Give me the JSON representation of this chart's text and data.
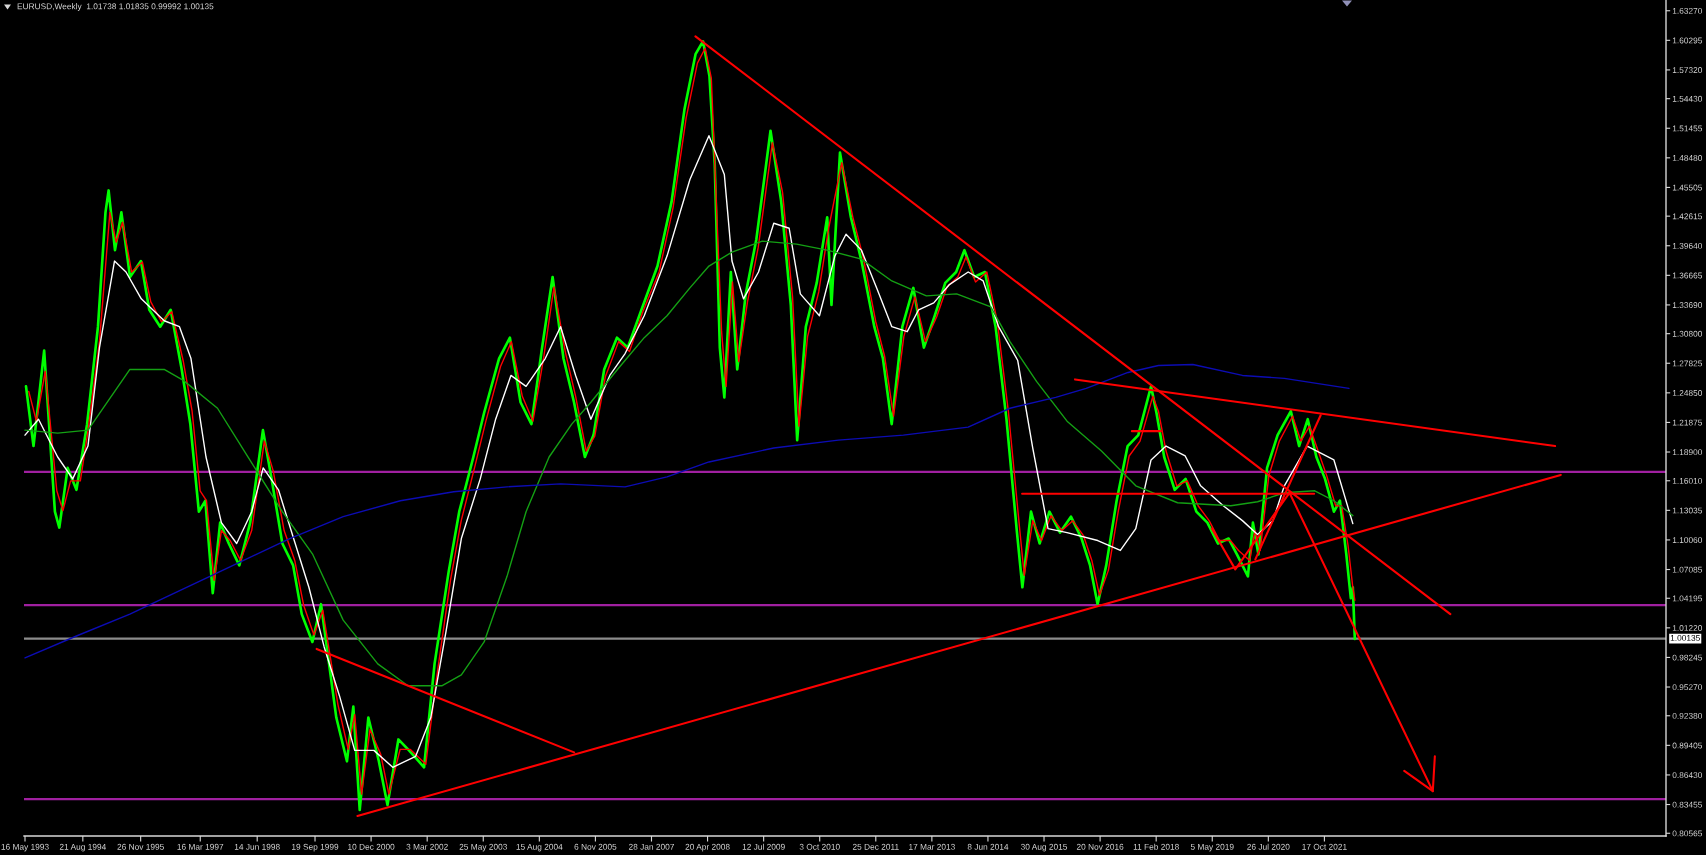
{
  "chart_data": {
    "type": "line",
    "title": "EURUSD,Weekly  1.01738 1.01835 0.99992 1.00135",
    "xlim": [
      "1993-05-08",
      "2029-04-07"
    ],
    "xticks": [
      {
        "value": "1993-05-16",
        "label": "16 May 1993"
      },
      {
        "value": "1994-08-21",
        "label": "21 Aug 1994"
      },
      {
        "value": "1995-11-26",
        "label": "26 Nov 1995"
      },
      {
        "value": "1997-03-16",
        "label": "16 Mar 1997"
      },
      {
        "value": "1998-06-14",
        "label": "14 Jun 1998"
      },
      {
        "value": "1999-09-19",
        "label": "19 Sep 1999"
      },
      {
        "value": "2000-12-10",
        "label": "10 Dec 2000"
      },
      {
        "value": "2002-03-03",
        "label": "3 Mar 2002"
      },
      {
        "value": "2003-05-25",
        "label": "25 May 2003"
      },
      {
        "value": "2004-08-15",
        "label": "15 Aug 2004"
      },
      {
        "value": "2005-11-06",
        "label": "6 Nov 2005"
      },
      {
        "value": "2007-01-28",
        "label": "28 Jan 2007"
      },
      {
        "value": "2008-04-20",
        "label": "20 Apr 2008"
      },
      {
        "value": "2009-07-12",
        "label": "12 Jul 2009"
      },
      {
        "value": "2010-10-03",
        "label": "3 Oct 2010"
      },
      {
        "value": "2011-12-25",
        "label": "25 Dec 2011"
      },
      {
        "value": "2013-03-17",
        "label": "17 Mar 2013"
      },
      {
        "value": "2014-06-08",
        "label": "8 Jun 2014"
      },
      {
        "value": "2015-08-30",
        "label": "30 Aug 2015"
      },
      {
        "value": "2016-11-20",
        "label": "20 Nov 2016"
      },
      {
        "value": "2018-02-11",
        "label": "11 Feb 2018"
      },
      {
        "value": "2019-05-05",
        "label": "5 May 2019"
      },
      {
        "value": "2020-07-26",
        "label": "26 Jul 2020"
      },
      {
        "value": "2021-10-17",
        "label": "17 Oct 2021"
      }
    ],
    "ylim": [
      0.8029,
      1.6435
    ],
    "yticks": [
      {
        "value": 1.6327,
        "label": "1.63270"
      },
      {
        "value": 1.60295,
        "label": "1.60295"
      },
      {
        "value": 1.5732,
        "label": "1.57320"
      },
      {
        "value": 1.5443,
        "label": "1.54430"
      },
      {
        "value": 1.51455,
        "label": "1.51455"
      },
      {
        "value": 1.4848,
        "label": "1.48480"
      },
      {
        "value": 1.45505,
        "label": "1.45505"
      },
      {
        "value": 1.42615,
        "label": "1.42615"
      },
      {
        "value": 1.3964,
        "label": "1.39640"
      },
      {
        "value": 1.36665,
        "label": "1.36665"
      },
      {
        "value": 1.3369,
        "label": "1.33690"
      },
      {
        "value": 1.308,
        "label": "1.30800"
      },
      {
        "value": 1.27825,
        "label": "1.27825"
      },
      {
        "value": 1.2485,
        "label": "1.24850"
      },
      {
        "value": 1.21875,
        "label": "1.21875"
      },
      {
        "value": 1.189,
        "label": "1.18900"
      },
      {
        "value": 1.1601,
        "label": "1.16010"
      },
      {
        "value": 1.13035,
        "label": "1.13035"
      },
      {
        "value": 1.1006,
        "label": "1.10060"
      },
      {
        "value": 1.07085,
        "label": "1.07085"
      },
      {
        "value": 1.04195,
        "label": "1.04195"
      },
      {
        "value": 1.0122,
        "label": "1.01220"
      },
      {
        "value": 0.98245,
        "label": "0.98245"
      },
      {
        "value": 0.9527,
        "label": "0.95270"
      },
      {
        "value": 0.9238,
        "label": "0.92380"
      },
      {
        "value": 0.89405,
        "label": "0.89405"
      },
      {
        "value": 0.8643,
        "label": "0.86430"
      },
      {
        "value": 0.83455,
        "label": "0.83455"
      },
      {
        "value": 0.80565,
        "label": "0.80565"
      }
    ],
    "grid": false,
    "marker": "none",
    "line_style": "solid",
    "series": [
      {
        "color": "#00ff00",
        "x": [
          "1993-05-24",
          "1993-07-23",
          "1993-10-16",
          "1994-01-10",
          "1994-02-14",
          "1994-04-22",
          "1994-07-01",
          "1994-09-24",
          "1994-12-20",
          "1995-02-18",
          "1995-03-15",
          "1995-05-05",
          "1995-06-25",
          "1995-09-02",
          "1995-11-28",
          "1996-02-03",
          "1996-04-30",
          "1996-07-23",
          "1996-10-19",
          "1996-12-27",
          "1997-03-05",
          "1997-04-26",
          "1997-06-24",
          "1997-08-22",
          "1997-10-30",
          "1998-01-22",
          "1998-04-19",
          "1998-07-30",
          "1998-10-07",
          "1999-01-01",
          "1999-03-28",
          "1999-06-05",
          "1999-08-29",
          "1999-11-06",
          "2000-03-07",
          "2000-05-31",
          "2000-07-21",
          "2000-09-10",
          "2000-11-18",
          "2001-02-10",
          "2001-04-20",
          "2001-07-16",
          "2001-10-09",
          "2002-02-06",
          "2002-05-01",
          "2002-08-22",
          "2002-11-14",
          "2003-03-07",
          "2003-05-31",
          "2003-09-28",
          "2003-12-24",
          "2004-03-18",
          "2004-06-13",
          "2004-09-06",
          "2004-11-29",
          "2005-02-24",
          "2005-05-19",
          "2005-08-14",
          "2005-10-22",
          "2006-01-15",
          "2006-04-27",
          "2006-07-22",
          "2006-11-09",
          "2007-03-17",
          "2007-07-08",
          "2007-10-19",
          "2008-01-15",
          "2008-03-15",
          "2008-05-05",
          "2008-06-16",
          "2008-07-27",
          "2008-09-01",
          "2008-10-23",
          "2008-12-13",
          "2009-02-19",
          "2009-05-15",
          "2009-09-05",
          "2009-11-29",
          "2010-02-14",
          "2010-04-06",
          "2010-06-14",
          "2010-09-09",
          "2010-12-02",
          "2011-01-05",
          "2011-03-14",
          "2011-06-09",
          "2011-09-02",
          "2011-12-13",
          "2012-02-20",
          "2012-04-30",
          "2012-07-24",
          "2012-10-20",
          "2013-01-12",
          "2013-04-09",
          "2013-07-02",
          "2013-09-27",
          "2013-12-02",
          "2014-02-18",
          "2014-05-15",
          "2014-08-08",
          "2014-11-03",
          "2015-01-26",
          "2015-03-10",
          "2015-05-18",
          "2015-07-26",
          "2015-10-12",
          "2016-01-05",
          "2016-04-01",
          "2016-06-25",
          "2016-09-01",
          "2016-10-31",
          "2017-01-08",
          "2017-04-01",
          "2017-06-28",
          "2017-09-21",
          "2018-01-01",
          "2018-02-14",
          "2018-04-16",
          "2018-07-09",
          "2018-10-04",
          "2018-12-29",
          "2019-03-27",
          "2019-06-19",
          "2019-09-13",
          "2019-11-18",
          "2020-02-14",
          "2020-03-25",
          "2020-05-08",
          "2020-07-16",
          "2020-10-08",
          "2021-01-22",
          "2021-03-29",
          "2021-06-06",
          "2021-08-14",
          "2021-10-22",
          "2022-01-01",
          "2022-02-18",
          "2022-04-10",
          "2022-05-16",
          "2022-06-01",
          "2022-06-17"
        ],
        "values": [
          1.255,
          1.195,
          1.291,
          1.129,
          1.113,
          1.173,
          1.151,
          1.217,
          1.315,
          1.43,
          1.452,
          1.392,
          1.43,
          1.365,
          1.381,
          1.332,
          1.315,
          1.332,
          1.272,
          1.217,
          1.129,
          1.14,
          1.047,
          1.118,
          1.097,
          1.075,
          1.118,
          1.211,
          1.162,
          1.097,
          1.075,
          1.026,
          0.998,
          1.036,
          0.922,
          0.878,
          0.933,
          0.829,
          0.922,
          0.878,
          0.834,
          0.9,
          0.889,
          0.872,
          0.976,
          1.069,
          1.129,
          1.184,
          1.228,
          1.283,
          1.304,
          1.239,
          1.217,
          1.294,
          1.365,
          1.283,
          1.239,
          1.184,
          1.206,
          1.272,
          1.304,
          1.294,
          1.332,
          1.376,
          1.441,
          1.534,
          1.589,
          1.602,
          1.567,
          1.479,
          1.294,
          1.244,
          1.37,
          1.272,
          1.348,
          1.403,
          1.512,
          1.441,
          1.337,
          1.201,
          1.315,
          1.359,
          1.425,
          1.337,
          1.49,
          1.425,
          1.381,
          1.315,
          1.283,
          1.217,
          1.315,
          1.354,
          1.294,
          1.326,
          1.359,
          1.37,
          1.392,
          1.365,
          1.37,
          1.315,
          1.222,
          1.108,
          1.053,
          1.129,
          1.097,
          1.129,
          1.108,
          1.124,
          1.102,
          1.075,
          1.036,
          1.075,
          1.14,
          1.195,
          1.206,
          1.255,
          1.228,
          1.184,
          1.151,
          1.162,
          1.129,
          1.118,
          1.097,
          1.102,
          1.086,
          1.064,
          1.118,
          1.086,
          1.173,
          1.206,
          1.23,
          1.195,
          1.222,
          1.184,
          1.162,
          1.129,
          1.14,
          1.086,
          1.042,
          1.053,
          1.001
        ]
      },
      {
        "color": "#ff0000",
        "x": [
          "1993-06-15",
          "1993-08-15",
          "1993-10-25",
          "1994-01-25",
          "1994-03-15",
          "1994-05-15",
          "1994-08-01",
          "1994-10-01",
          "1995-01-01",
          "1995-03-25",
          "1995-05-15",
          "1995-07-05",
          "1995-09-15",
          "1995-12-10",
          "1996-02-15",
          "1996-05-10",
          "1996-08-01",
          "1996-11-01",
          "1997-01-10",
          "1997-03-15",
          "1997-05-05",
          "1997-07-05",
          "1997-09-01",
          "1997-11-10",
          "1998-02-01",
          "1998-05-01",
          "1998-08-10",
          "1998-10-20",
          "1999-01-15",
          "1999-04-10",
          "1999-06-20",
          "1999-09-10",
          "1999-11-20",
          "2000-03-20",
          "2000-06-10",
          "2000-08-01",
          "2000-09-25",
          "2000-12-01",
          "2001-02-25",
          "2001-05-01",
          "2001-07-30",
          "2001-10-20",
          "2002-02-20",
          "2002-05-15",
          "2002-09-05",
          "2002-11-30",
          "2003-03-20",
          "2003-06-15",
          "2003-10-10",
          "2004-01-05",
          "2004-04-01",
          "2004-06-25",
          "2004-09-20",
          "2004-12-10",
          "2005-03-10",
          "2005-06-01",
          "2005-08-25",
          "2005-11-01",
          "2006-01-25",
          "2006-05-10",
          "2006-08-05",
          "2006-11-20",
          "2007-03-30",
          "2007-07-20",
          "2007-11-01",
          "2008-01-30",
          "2008-04-01",
          "2008-05-20",
          "2008-08-10",
          "2008-09-15",
          "2008-11-05",
          "2008-12-25",
          "2009-03-05",
          "2009-05-30",
          "2009-09-20",
          "2009-12-10",
          "2010-02-28",
          "2010-04-20",
          "2010-06-28",
          "2010-09-25",
          "2010-12-15",
          "2011-03-28",
          "2011-06-25",
          "2011-09-15",
          "2011-12-25",
          "2012-03-05",
          "2012-05-15",
          "2012-08-05",
          "2012-11-01",
          "2013-01-25",
          "2013-04-25",
          "2013-07-15",
          "2013-10-10",
          "2013-12-15",
          "2014-03-01",
          "2014-05-30",
          "2014-08-22",
          "2014-11-18",
          "2015-02-10",
          "2015-03-25",
          "2015-06-01",
          "2015-08-10",
          "2015-10-25",
          "2016-01-20",
          "2016-04-15",
          "2016-07-10",
          "2016-09-15",
          "2016-11-15",
          "2017-01-25",
          "2017-04-15",
          "2017-07-10",
          "2017-10-05",
          "2018-01-15",
          "2018-03-01",
          "2018-05-01",
          "2018-07-25",
          "2018-10-18",
          "2019-01-12",
          "2019-04-10",
          "2019-07-02",
          "2019-09-27",
          "2019-12-01",
          "2020-02-28",
          "2020-04-10",
          "2020-05-22",
          "2020-07-30",
          "2020-10-22",
          "2021-02-05",
          "2021-04-12",
          "2021-06-20",
          "2021-08-28",
          "2021-11-05",
          "2022-01-15",
          "2022-03-04",
          "2022-04-24",
          "2022-05-30",
          "2022-06-17"
        ],
        "values": [
          1.25,
          1.22,
          1.27,
          1.15,
          1.13,
          1.16,
          1.16,
          1.21,
          1.3,
          1.43,
          1.4,
          1.42,
          1.37,
          1.38,
          1.34,
          1.32,
          1.33,
          1.28,
          1.23,
          1.15,
          1.14,
          1.06,
          1.11,
          1.1,
          1.08,
          1.11,
          1.2,
          1.17,
          1.11,
          1.08,
          1.035,
          1.005,
          1.03,
          0.935,
          0.89,
          0.925,
          0.845,
          0.91,
          0.885,
          0.845,
          0.89,
          0.89,
          0.875,
          0.96,
          1.06,
          1.12,
          1.175,
          1.22,
          1.275,
          1.3,
          1.245,
          1.22,
          1.285,
          1.355,
          1.29,
          1.245,
          1.19,
          1.205,
          1.265,
          1.3,
          1.29,
          1.33,
          1.37,
          1.435,
          1.525,
          1.58,
          1.595,
          1.565,
          1.31,
          1.255,
          1.36,
          1.28,
          1.34,
          1.395,
          1.5,
          1.45,
          1.345,
          1.215,
          1.305,
          1.35,
          1.415,
          1.48,
          1.425,
          1.385,
          1.32,
          1.285,
          1.225,
          1.305,
          1.345,
          1.3,
          1.325,
          1.355,
          1.365,
          1.385,
          1.36,
          1.37,
          1.32,
          1.23,
          1.12,
          1.065,
          1.12,
          1.1,
          1.125,
          1.11,
          1.12,
          1.105,
          1.08,
          1.045,
          1.07,
          1.13,
          1.185,
          1.2,
          1.245,
          1.23,
          1.19,
          1.155,
          1.16,
          1.135,
          1.12,
          1.1,
          1.1,
          1.09,
          1.08,
          1.11,
          1.09,
          1.165,
          1.2,
          1.225,
          1.2,
          1.215,
          1.19,
          1.165,
          1.135,
          1.135,
          1.095,
          1.055,
          1.04
        ]
      },
      {
        "color": "#ffffff",
        "x": [
          "1993-05-16",
          "1993-09",
          "1994-02",
          "1994-06",
          "1994-10",
          "1995-01",
          "1995-05",
          "1995-08",
          "1995-12",
          "1996-06",
          "1996-10",
          "1997-01",
          "1997-05",
          "1997-09",
          "1998-01",
          "1998-05",
          "1998-08",
          "1998-12",
          "1999-04",
          "1999-08",
          "1999-12",
          "2000-04",
          "2000-08",
          "2001-01",
          "2001-06",
          "2001-12",
          "2002-04",
          "2002-08",
          "2002-12",
          "2003-05",
          "2003-09",
          "2004-01",
          "2004-05",
          "2004-10",
          "2005-02",
          "2005-06",
          "2005-10",
          "2006-03",
          "2006-07",
          "2006-12",
          "2007-06",
          "2007-12",
          "2008-05",
          "2008-09",
          "2008-11",
          "2009-02",
          "2009-06",
          "2009-10",
          "2010-02",
          "2010-05",
          "2010-10",
          "2011-02",
          "2011-05",
          "2011-09",
          "2012-01",
          "2012-05",
          "2012-09",
          "2012-12",
          "2013-04",
          "2013-08",
          "2014-01",
          "2014-05",
          "2014-09",
          "2015-02",
          "2015-06",
          "2015-10",
          "2016-03",
          "2016-11",
          "2017-05",
          "2017-09",
          "2018-01",
          "2018-05",
          "2018-10",
          "2019-02",
          "2019-08",
          "2020-01",
          "2020-05",
          "2020-09",
          "2020-12",
          "2021-06",
          "2022-01",
          "2022-06"
        ],
        "values": [
          1.206,
          1.222,
          1.184,
          1.162,
          1.195,
          1.294,
          1.381,
          1.37,
          1.343,
          1.321,
          1.315,
          1.283,
          1.184,
          1.118,
          1.097,
          1.129,
          1.173,
          1.151,
          1.102,
          1.053,
          0.993,
          0.944,
          0.889,
          0.889,
          0.872,
          0.883,
          0.922,
          1.009,
          1.102,
          1.162,
          1.222,
          1.266,
          1.255,
          1.283,
          1.315,
          1.266,
          1.222,
          1.266,
          1.288,
          1.326,
          1.386,
          1.463,
          1.507,
          1.468,
          1.381,
          1.343,
          1.37,
          1.419,
          1.414,
          1.348,
          1.326,
          1.386,
          1.408,
          1.392,
          1.354,
          1.315,
          1.31,
          1.332,
          1.339,
          1.357,
          1.37,
          1.361,
          1.315,
          1.281,
          1.193,
          1.112,
          1.108,
          1.1,
          1.09,
          1.112,
          1.181,
          1.195,
          1.185,
          1.155,
          1.135,
          1.12,
          1.106,
          1.12,
          1.155,
          1.195,
          1.181,
          1.117
        ]
      },
      {
        "color": "#14a014",
        "x": [
          "1993-05-16",
          "1994-02",
          "1994-10",
          "1995-09",
          "1996-06",
          "1996-11",
          "1997-08",
          "1998-04",
          "1999-01",
          "1999-09",
          "2000-05",
          "2001-02",
          "2001-10",
          "2002-07",
          "2002-12",
          "2003-06",
          "2003-12",
          "2004-05",
          "2004-11",
          "2005-05",
          "2005-10",
          "2006-05",
          "2006-12",
          "2007-06",
          "2007-12",
          "2008-05",
          "2008-11",
          "2009-07",
          "2010-04",
          "2010-12",
          "2011-09",
          "2012-05",
          "2013-02",
          "2013-10",
          "2014-07",
          "2014-12",
          "2015-07",
          "2016-03",
          "2016-12",
          "2017-09",
          "2018-08",
          "2019-10",
          "2020-05",
          "2020-12",
          "2021-08",
          "2022-01",
          "2022-06"
        ],
        "values": [
          1.211,
          1.208,
          1.211,
          1.272,
          1.272,
          1.261,
          1.233,
          1.184,
          1.129,
          1.086,
          1.02,
          0.976,
          0.954,
          0.954,
          0.965,
          0.998,
          1.064,
          1.129,
          1.184,
          1.217,
          1.239,
          1.272,
          1.304,
          1.326,
          1.354,
          1.376,
          1.39,
          1.401,
          1.398,
          1.392,
          1.383,
          1.361,
          1.346,
          1.348,
          1.335,
          1.3,
          1.26,
          1.22,
          1.19,
          1.155,
          1.138,
          1.135,
          1.139,
          1.148,
          1.15,
          1.14,
          1.125
        ]
      },
      {
        "color": "#0c0cb4",
        "x": [
          "1993-05-16",
          "1994-07",
          "1995-09",
          "1997-06",
          "1999-03",
          "2000-05",
          "2001-08",
          "2002-10",
          "2003-12",
          "2005-02",
          "2006-07",
          "2007-06",
          "2008-05",
          "2009-10",
          "2011-03",
          "2012-08",
          "2014-01",
          "2014-12",
          "2015-12",
          "2016-08",
          "2017-07",
          "2018-03",
          "2018-12",
          "2020-01",
          "2020-12",
          "2022-05"
        ],
        "values": [
          0.982,
          1.004,
          1.026,
          1.064,
          1.102,
          1.124,
          1.14,
          1.149,
          1.154,
          1.157,
          1.154,
          1.164,
          1.179,
          1.193,
          1.201,
          1.206,
          1.214,
          1.233,
          1.244,
          1.253,
          1.269,
          1.276,
          1.277,
          1.266,
          1.263,
          1.253
        ]
      },
      {
        "type": "line",
        "color": "#ff0000",
        "x": [
          "2008-01-14",
          "2024-07-19"
        ],
        "values": [
          1.607,
          1.026
        ]
      },
      {
        "type": "line",
        "color": "#ff0000",
        "x": [
          "2016-05-04",
          "2026-11-03"
        ],
        "values": [
          1.262,
          1.195
        ]
      },
      {
        "type": "line",
        "color": "#ff0000",
        "x": [
          "2000-08-23",
          "2026-12-18"
        ],
        "values": [
          0.823,
          1.166
        ]
      },
      {
        "type": "line",
        "color": "#ff0000",
        "x": [
          "1999-10-02",
          "2005-05-20"
        ],
        "values": [
          0.991,
          0.887
        ]
      },
      {
        "type": "line",
        "color": "#ff0000",
        "x": [
          "2015-03-08",
          "2021-07-27"
        ],
        "values": [
          1.147,
          1.147
        ]
      },
      {
        "type": "line",
        "color": "#ff0000",
        "x": [
          "2017-08-01",
          "2018-03-20"
        ],
        "values": [
          1.21,
          1.21
        ]
      },
      {
        "type": "line",
        "color": "#ff0000",
        "x": [
          "2019-05-01",
          "2019-11-05",
          "2021-01-11"
        ],
        "values": [
          1.112,
          1.071,
          1.148
        ]
      },
      {
        "type": "line",
        "color": "#ff0000",
        "x": [
          "2020-04-13",
          "2021-09-17"
        ],
        "values": [
          1.081,
          1.226
        ]
      },
      {
        "type": "line",
        "color": "#ff0000",
        "x": [
          "2021-01-11",
          "2024-03-01"
        ],
        "values": [
          1.148,
          0.848
        ]
      }
    ],
    "ref_lines": [
      {
        "axis": "y",
        "value": 1.169,
        "color": "#a020a0"
      },
      {
        "axis": "y",
        "value": 1.035,
        "color": "#a020a0"
      },
      {
        "axis": "y",
        "value": 0.84,
        "color": "#a020a0"
      },
      {
        "axis": "y",
        "value": 1.00135,
        "label": "1.00135",
        "color": "#8c8c8c"
      }
    ]
  }
}
